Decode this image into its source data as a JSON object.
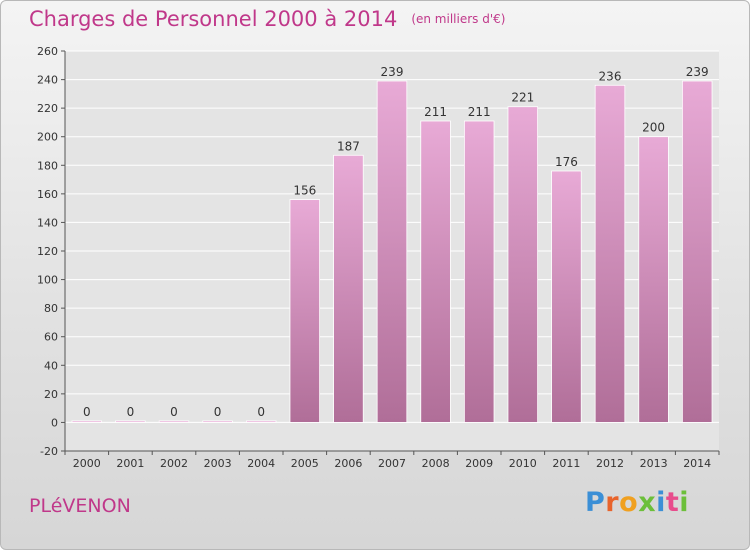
{
  "header": {
    "title": "Charges de Personnel 2000 à 2014",
    "subtitle": "(en milliers d'€)"
  },
  "footer": {
    "place": "PLéVENON",
    "brand": "Proxiti"
  },
  "colors": {
    "title": "#c0388a",
    "bar_top": "#e8aad6",
    "bar_bottom": "#b06e98",
    "grid": "#ffffff",
    "axis": "#555555",
    "brand_letters": [
      "#3b8fd6",
      "#e8642c",
      "#f0a020",
      "#6cbf3a",
      "#3b8fd6",
      "#e84c8c",
      "#6cbf3a"
    ]
  },
  "chart_data": {
    "type": "bar",
    "title": "Charges de Personnel 2000 à 2014",
    "subtitle": "(en milliers d'€)",
    "xlabel": "",
    "ylabel": "",
    "categories": [
      "2000",
      "2001",
      "2002",
      "2003",
      "2004",
      "2005",
      "2006",
      "2007",
      "2008",
      "2009",
      "2010",
      "2011",
      "2012",
      "2013",
      "2014"
    ],
    "values": [
      0,
      0,
      0,
      0,
      0,
      156,
      187,
      239,
      211,
      211,
      221,
      176,
      236,
      200,
      239
    ],
    "data_labels": [
      "0",
      "0",
      "0",
      "0",
      "0",
      "156",
      "187",
      "239",
      "211",
      "211",
      "221",
      "176",
      "236",
      "200",
      "239"
    ],
    "ylim": [
      -20,
      260
    ],
    "yticks": [
      -20,
      0,
      20,
      40,
      60,
      80,
      100,
      120,
      140,
      160,
      180,
      200,
      220,
      240,
      260
    ],
    "grid": true,
    "legend": "none"
  }
}
